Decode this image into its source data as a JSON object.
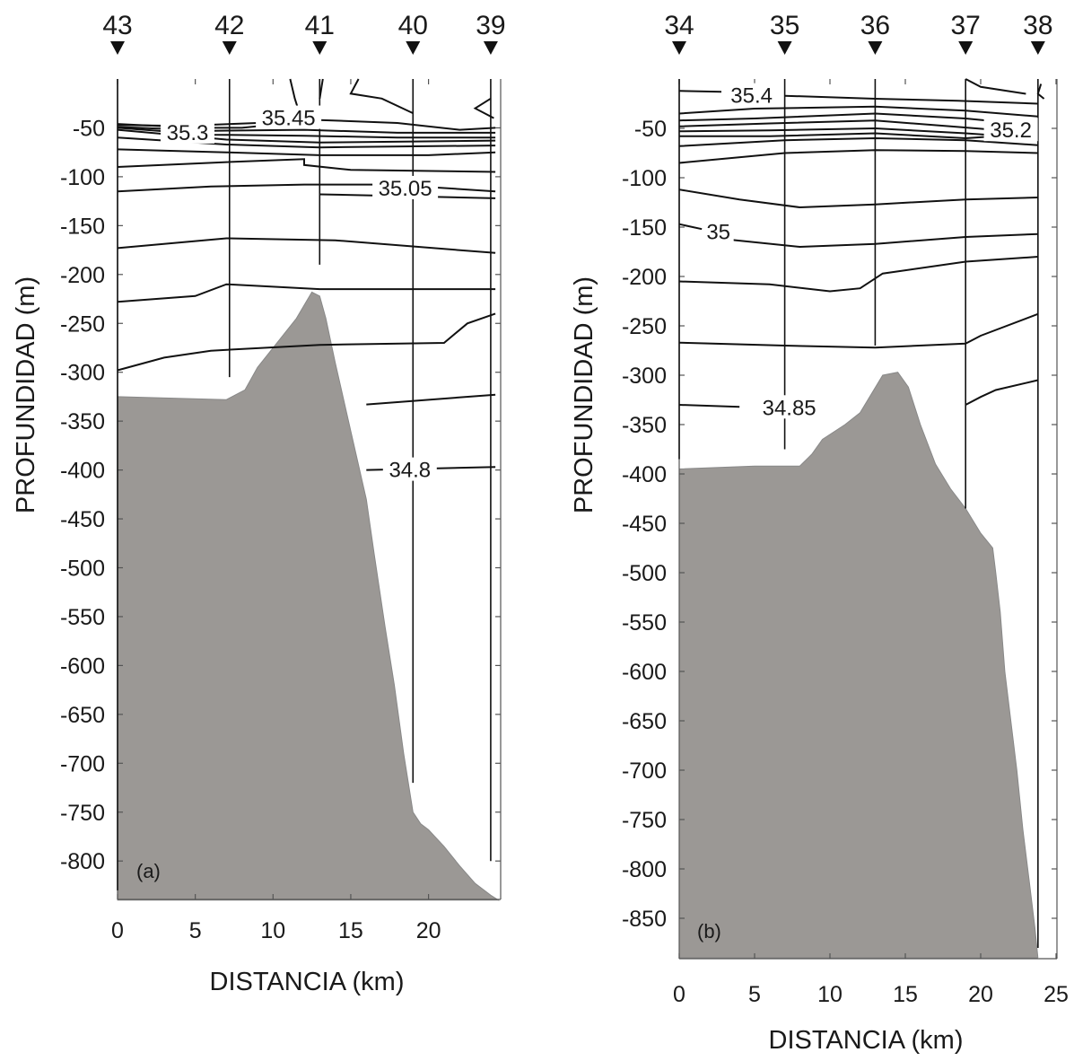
{
  "chart_data": [
    {
      "type": "contour-section",
      "panel_label": "(a)",
      "xlabel": "DISTANCIA (km)",
      "ylabel": "PROFUNDIDAD (m)",
      "xlim": [
        0,
        24.5
      ],
      "ylim": [
        -840,
        0
      ],
      "x_ticks": [
        0,
        5,
        10,
        15,
        20
      ],
      "y_ticks": [
        -50,
        -100,
        -150,
        -200,
        -250,
        -300,
        -350,
        -400,
        -450,
        -500,
        -550,
        -600,
        -650,
        -700,
        -750,
        -800
      ],
      "stations": [
        {
          "label": "43",
          "x": 0,
          "bottom": -830
        },
        {
          "label": "42",
          "x": 7.2,
          "bottom": -305
        },
        {
          "label": "41",
          "x": 13.0,
          "bottom": -190
        },
        {
          "label": "40",
          "x": 19.0,
          "bottom": -720
        },
        {
          "label": "39",
          "x": 24.0,
          "bottom": -800
        }
      ],
      "isohaline_labels": [
        {
          "text": "35.45",
          "x": 11.0,
          "y": -40
        },
        {
          "text": "35.3",
          "x": 4.5,
          "y": -55
        },
        {
          "text": "35.05",
          "x": 18.5,
          "y": -112
        },
        {
          "text": "34.8",
          "x": 18.8,
          "y": -400
        }
      ],
      "contours": [
        [
          [
            11.1,
            0
          ],
          [
            11.4,
            -20
          ],
          [
            11.8,
            -40
          ]
        ],
        [
          [
            13.2,
            0
          ],
          [
            13.0,
            -20
          ]
        ],
        [
          [
            15.5,
            0
          ],
          [
            15.0,
            -15
          ],
          [
            17.0,
            -20
          ],
          [
            19.0,
            -35
          ]
        ],
        [
          [
            24.0,
            -20
          ],
          [
            23.0,
            -30
          ],
          [
            24.2,
            -40
          ]
        ],
        [
          [
            0,
            -47
          ],
          [
            4.0,
            -48
          ],
          [
            9.0,
            -45
          ],
          [
            11.0,
            -41
          ]
        ],
        [
          [
            0,
            -46
          ],
          [
            5.0,
            -50
          ],
          [
            8.0,
            -50
          ],
          [
            13.0,
            -42
          ],
          [
            18.0,
            -45
          ],
          [
            22.0,
            -52
          ],
          [
            24.3,
            -50
          ]
        ],
        [
          [
            0,
            -49
          ],
          [
            6.0,
            -53
          ],
          [
            12.0,
            -52
          ],
          [
            18.0,
            -55
          ],
          [
            24.3,
            -55
          ]
        ],
        [
          [
            0,
            -50
          ],
          [
            6.0,
            -57
          ],
          [
            12.0,
            -58
          ],
          [
            18.0,
            -60
          ],
          [
            24.3,
            -60
          ]
        ],
        [
          [
            0,
            -52
          ],
          [
            7.0,
            -62
          ],
          [
            13.0,
            -65
          ],
          [
            24.3,
            -63
          ]
        ],
        [
          [
            0,
            -60
          ],
          [
            7.0,
            -67
          ],
          [
            13.0,
            -70
          ],
          [
            24.3,
            -68
          ]
        ],
        [
          [
            0,
            -72
          ],
          [
            7.0,
            -75
          ],
          [
            13.0,
            -78
          ],
          [
            20.0,
            -78
          ],
          [
            24.3,
            -75
          ]
        ],
        [
          [
            0,
            -90
          ],
          [
            7.0,
            -85
          ],
          [
            12.0,
            -82
          ],
          [
            12.0,
            -88
          ],
          [
            15.0,
            -93
          ],
          [
            24.3,
            -95
          ]
        ],
        [
          [
            0,
            -115
          ],
          [
            6.0,
            -110
          ],
          [
            12.0,
            -108
          ],
          [
            17.5,
            -108
          ],
          [
            24.3,
            -115
          ]
        ],
        [
          [
            13.0,
            -118
          ],
          [
            19.0,
            -120
          ],
          [
            24.3,
            -122
          ]
        ],
        [
          [
            0,
            -173
          ],
          [
            7.0,
            -163
          ],
          [
            14.0,
            -165
          ],
          [
            24.3,
            -178
          ]
        ],
        [
          [
            0,
            -228
          ],
          [
            5.0,
            -222
          ],
          [
            7.0,
            -210
          ],
          [
            13.0,
            -215
          ],
          [
            24.3,
            -215
          ]
        ],
        [
          [
            0,
            -298
          ],
          [
            3.0,
            -285
          ],
          [
            6.0,
            -278
          ],
          [
            13.0,
            -272
          ],
          [
            21.0,
            -270
          ],
          [
            22.5,
            -250
          ],
          [
            24.3,
            -240
          ]
        ],
        [
          [
            16.0,
            -333
          ],
          [
            24.3,
            -323
          ]
        ],
        [
          [
            16.0,
            -400
          ],
          [
            24.3,
            -397
          ]
        ]
      ],
      "bathymetry": [
        [
          0,
          -325
        ],
        [
          7.0,
          -328
        ],
        [
          8.2,
          -318
        ],
        [
          9.0,
          -295
        ],
        [
          10.5,
          -265
        ],
        [
          11.5,
          -245
        ],
        [
          12.5,
          -218
        ],
        [
          13.0,
          -222
        ],
        [
          13.4,
          -245
        ],
        [
          14.0,
          -290
        ],
        [
          15.0,
          -360
        ],
        [
          16.0,
          -430
        ],
        [
          16.5,
          -485
        ],
        [
          17.2,
          -560
        ],
        [
          17.8,
          -620
        ],
        [
          18.4,
          -690
        ],
        [
          19.0,
          -750
        ],
        [
          19.5,
          -762
        ],
        [
          20.0,
          -768
        ],
        [
          21.0,
          -785
        ],
        [
          22.0,
          -805
        ],
        [
          23.0,
          -823
        ],
        [
          24.0,
          -835
        ],
        [
          24.5,
          -840
        ]
      ]
    },
    {
      "type": "contour-section",
      "panel_label": "(b)",
      "xlabel": "DISTANCIA (km)",
      "ylabel": "PROFUNDIDAD (m)",
      "xlim": [
        0,
        25
      ],
      "ylim": [
        -890,
        0
      ],
      "x_ticks": [
        0,
        5,
        10,
        15,
        20,
        25
      ],
      "y_ticks": [
        -50,
        -100,
        -150,
        -200,
        -250,
        -300,
        -350,
        -400,
        -450,
        -500,
        -550,
        -600,
        -650,
        -700,
        -750,
        -800,
        -850
      ],
      "stations": [
        {
          "label": "34",
          "x": 0,
          "bottom": -385
        },
        {
          "label": "35",
          "x": 7.0,
          "bottom": -375
        },
        {
          "label": "36",
          "x": 13.0,
          "bottom": -270
        },
        {
          "label": "37",
          "x": 19.0,
          "bottom": -435
        },
        {
          "label": "38",
          "x": 23.8,
          "bottom": -880
        }
      ],
      "isohaline_labels": [
        {
          "text": "35.4",
          "x": 4.8,
          "y": -17
        },
        {
          "text": "35.2",
          "x": 22.0,
          "y": -52
        },
        {
          "text": "35",
          "x": 2.6,
          "y": -155
        },
        {
          "text": "34.85",
          "x": 7.3,
          "y": -333
        }
      ],
      "contours": [
        [
          [
            0,
            -12
          ],
          [
            2.8,
            -13
          ]
        ],
        [
          [
            7.0,
            -17
          ],
          [
            13.0,
            -20
          ],
          [
            18.5,
            -22
          ],
          [
            23.8,
            -25
          ]
        ],
        [
          [
            19.0,
            0
          ],
          [
            20.0,
            -8
          ],
          [
            23.0,
            -15
          ]
        ],
        [
          [
            24.0,
            -5
          ],
          [
            23.8,
            -15
          ],
          [
            24.2,
            -20
          ]
        ],
        [
          [
            0,
            -35
          ],
          [
            5.0,
            -30
          ],
          [
            13.0,
            -28
          ],
          [
            19.0,
            -32
          ],
          [
            23.8,
            -38
          ]
        ],
        [
          [
            0,
            -42
          ],
          [
            5.0,
            -40
          ],
          [
            13.0,
            -35
          ],
          [
            19.0,
            -40
          ],
          [
            23.8,
            -47
          ]
        ],
        [
          [
            0,
            -48
          ],
          [
            6.0,
            -45
          ],
          [
            13.0,
            -42
          ],
          [
            18.0,
            -48
          ],
          [
            23.8,
            -55
          ]
        ],
        [
          [
            0,
            -53
          ],
          [
            6.0,
            -52
          ],
          [
            13.0,
            -50
          ],
          [
            19.0,
            -55
          ],
          [
            23.8,
            -60
          ]
        ],
        [
          [
            0,
            -58
          ],
          [
            6.0,
            -58
          ],
          [
            13.0,
            -55
          ],
          [
            19.0,
            -60
          ],
          [
            21.0,
            -58
          ]
        ],
        [
          [
            0,
            -68
          ],
          [
            7.0,
            -62
          ],
          [
            13.0,
            -60
          ],
          [
            19.0,
            -62
          ],
          [
            23.8,
            -67
          ]
        ],
        [
          [
            0,
            -85
          ],
          [
            7.0,
            -75
          ],
          [
            13.0,
            -72
          ],
          [
            19.0,
            -73
          ],
          [
            23.8,
            -75
          ]
        ],
        [
          [
            0,
            -112
          ],
          [
            4.0,
            -122
          ],
          [
            8.0,
            -130
          ],
          [
            13.0,
            -127
          ],
          [
            19.0,
            -122
          ],
          [
            23.8,
            -120
          ]
        ],
        [
          [
            0,
            -147
          ],
          [
            1.5,
            -152
          ]
        ],
        [
          [
            3.5,
            -163
          ],
          [
            8.0,
            -170
          ],
          [
            13.0,
            -167
          ],
          [
            19.0,
            -160
          ],
          [
            23.8,
            -157
          ]
        ],
        [
          [
            0,
            -205
          ],
          [
            6.0,
            -208
          ],
          [
            10.0,
            -215
          ],
          [
            12.0,
            -212
          ],
          [
            13.5,
            -197
          ],
          [
            19.0,
            -185
          ],
          [
            23.8,
            -180
          ]
        ],
        [
          [
            0,
            -267
          ],
          [
            7.0,
            -270
          ],
          [
            13.0,
            -272
          ],
          [
            19.0,
            -268
          ],
          [
            20.0,
            -260
          ],
          [
            23.8,
            -238
          ]
        ],
        [
          [
            0,
            -330
          ],
          [
            4.0,
            -332
          ]
        ],
        [
          [
            19.0,
            -330
          ],
          [
            20.0,
            -322
          ],
          [
            21.0,
            -315
          ],
          [
            23.8,
            -305
          ]
        ]
      ],
      "bathymetry": [
        [
          0,
          -395
        ],
        [
          5.0,
          -392
        ],
        [
          8.0,
          -392
        ],
        [
          8.8,
          -380
        ],
        [
          9.5,
          -365
        ],
        [
          11.0,
          -350
        ],
        [
          12.0,
          -338
        ],
        [
          13.5,
          -300
        ],
        [
          14.5,
          -297
        ],
        [
          15.2,
          -312
        ],
        [
          16.0,
          -350
        ],
        [
          17.0,
          -390
        ],
        [
          18.0,
          -415
        ],
        [
          19.0,
          -435
        ],
        [
          20.0,
          -460
        ],
        [
          20.8,
          -475
        ],
        [
          21.0,
          -500
        ],
        [
          21.3,
          -540
        ],
        [
          21.6,
          -600
        ],
        [
          22.0,
          -650
        ],
        [
          22.4,
          -700
        ],
        [
          22.8,
          -760
        ],
        [
          23.2,
          -810
        ],
        [
          23.6,
          -860
        ],
        [
          23.8,
          -890
        ]
      ]
    }
  ]
}
